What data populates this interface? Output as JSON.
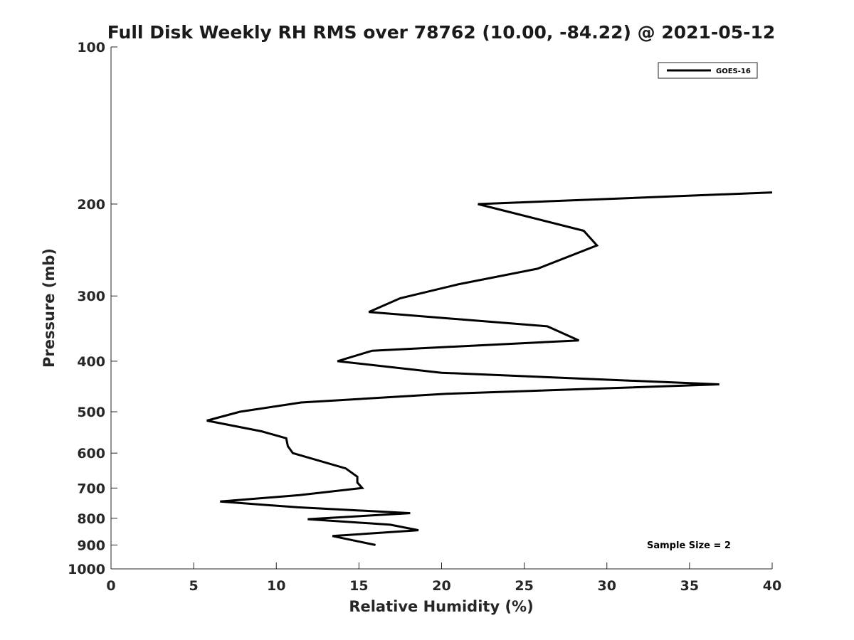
{
  "chart_data": {
    "type": "line",
    "title": "Full Disk Weekly RH RMS over 78762 (10.00, -84.22) @ 2021-05-12",
    "xlabel": "Relative Humidity (%)",
    "ylabel": "Pressure (mb)",
    "xlim": [
      0,
      40
    ],
    "ylim": [
      100,
      1000
    ],
    "y_scale": "log",
    "y_reversed": true,
    "x_ticks": [
      "0",
      "5",
      "10",
      "15",
      "20",
      "25",
      "30",
      "35",
      "40"
    ],
    "y_ticks": [
      "100",
      "200",
      "300",
      "400",
      "500",
      "600",
      "700",
      "800",
      "900",
      "1000"
    ],
    "grid": false,
    "legend_position": "top-right",
    "annotation": "Sample Size = 2",
    "series": [
      {
        "name": "GOES-16",
        "color": "#000000",
        "points": [
          {
            "x": 40.0,
            "y": 190
          },
          {
            "x": 22.2,
            "y": 200
          },
          {
            "x": 28.6,
            "y": 225
          },
          {
            "x": 29.4,
            "y": 240
          },
          {
            "x": 25.8,
            "y": 266
          },
          {
            "x": 21.0,
            "y": 285
          },
          {
            "x": 17.5,
            "y": 303
          },
          {
            "x": 15.6,
            "y": 322
          },
          {
            "x": 26.4,
            "y": 343
          },
          {
            "x": 28.3,
            "y": 365
          },
          {
            "x": 15.8,
            "y": 382
          },
          {
            "x": 13.7,
            "y": 400
          },
          {
            "x": 20.0,
            "y": 421
          },
          {
            "x": 36.8,
            "y": 443
          },
          {
            "x": 20.3,
            "y": 462
          },
          {
            "x": 11.5,
            "y": 480
          },
          {
            "x": 7.8,
            "y": 500
          },
          {
            "x": 5.8,
            "y": 520
          },
          {
            "x": 9.1,
            "y": 545
          },
          {
            "x": 10.6,
            "y": 562
          },
          {
            "x": 10.7,
            "y": 582
          },
          {
            "x": 11.0,
            "y": 600
          },
          {
            "x": 14.2,
            "y": 642
          },
          {
            "x": 14.9,
            "y": 666
          },
          {
            "x": 14.9,
            "y": 683
          },
          {
            "x": 15.2,
            "y": 700
          },
          {
            "x": 11.4,
            "y": 722
          },
          {
            "x": 6.6,
            "y": 743
          },
          {
            "x": 11.3,
            "y": 762
          },
          {
            "x": 18.1,
            "y": 782
          },
          {
            "x": 11.9,
            "y": 803
          },
          {
            "x": 16.9,
            "y": 823
          },
          {
            "x": 18.6,
            "y": 843
          },
          {
            "x": 13.4,
            "y": 865
          },
          {
            "x": 16.0,
            "y": 900
          }
        ]
      }
    ]
  }
}
